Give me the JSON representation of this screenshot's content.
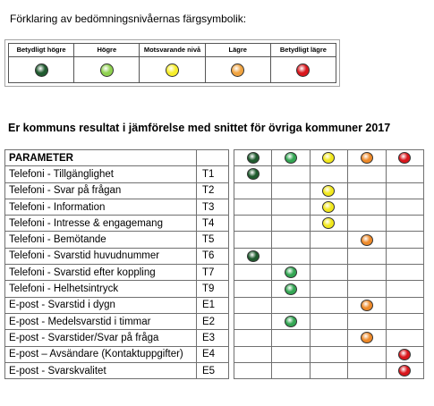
{
  "legend": {
    "title": "Förklaring av bedömningsnivåernas färgsymbolik:",
    "levels": [
      {
        "label": "Betydligt högre",
        "color": "#1f5a2e"
      },
      {
        "label": "Högre",
        "color": "#8fd14f"
      },
      {
        "label": "Motsvarande nivå",
        "color": "#f7ee2a"
      },
      {
        "label": "Lägre",
        "color": "#f0a340"
      },
      {
        "label": "Betydligt lägre",
        "color": "#d9161c"
      }
    ]
  },
  "comparison": {
    "title": "Er kommuns resultat i jämförelse med snittet för övriga kommuner 2017",
    "header_param": "PARAMETER",
    "header_colors": [
      "#1f5a2e",
      "#33a653",
      "#f2e81c",
      "#ee8a2a",
      "#d9161c"
    ],
    "rows": [
      {
        "param": "Telefoni - Tillgänglighet",
        "code": "T1",
        "level": 0
      },
      {
        "param": "Telefoni - Svar på frågan",
        "code": "T2",
        "level": 2
      },
      {
        "param": "Telefoni - Information",
        "code": "T3",
        "level": 2
      },
      {
        "param": "Telefoni - Intresse & engagemang",
        "code": "T4",
        "level": 2
      },
      {
        "param": "Telefoni - Bemötande",
        "code": "T5",
        "level": 3
      },
      {
        "param": "Telefoni - Svarstid huvudnummer",
        "code": "T6",
        "level": 0
      },
      {
        "param": "Telefoni - Svarstid efter koppling",
        "code": "T7",
        "level": 1
      },
      {
        "param": "Telefoni - Helhetsintryck",
        "code": "T9",
        "level": 1
      },
      {
        "param": "E-post - Svarstid i dygn",
        "code": "E1",
        "level": 3
      },
      {
        "param": "E-post - Medelsvarstid i timmar",
        "code": "E2",
        "level": 1
      },
      {
        "param": "E-post - Svarstider/Svar på fråga",
        "code": "E3",
        "level": 3
      },
      {
        "param": "E-post – Avsändare (Kontaktuppgifter)",
        "code": "E4",
        "level": 4
      },
      {
        "param": "E-post - Svarskvalitet",
        "code": "E5",
        "level": 4
      }
    ]
  }
}
